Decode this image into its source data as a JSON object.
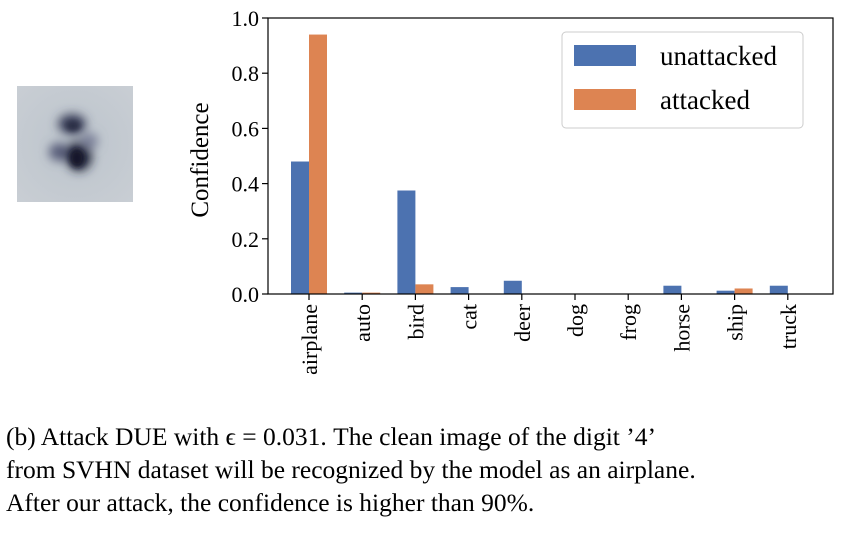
{
  "chart_data": {
    "type": "bar",
    "categories": [
      "airplane",
      "auto",
      "bird",
      "cat",
      "deer",
      "dog",
      "frog",
      "horse",
      "ship",
      "truck"
    ],
    "series": [
      {
        "name": "unattacked",
        "color": "#4c72b0",
        "values": [
          0.48,
          0.005,
          0.375,
          0.025,
          0.048,
          0.0,
          0.0,
          0.03,
          0.012,
          0.03
        ]
      },
      {
        "name": "attacked",
        "color": "#dd8452",
        "values": [
          0.94,
          0.005,
          0.035,
          0.0,
          0.0,
          0.0,
          0.0,
          0.0,
          0.02,
          0.0
        ]
      }
    ],
    "ylabel": "Confidence",
    "xlabel": "",
    "ylim": [
      0,
      1.0
    ],
    "yticks": [
      "0.0",
      "0.2",
      "0.4",
      "0.6",
      "0.8",
      "1.0"
    ],
    "legend_position": "top-right",
    "grid": false
  },
  "caption": {
    "line1": "(b) Attack DUE with ϵ = 0.031.  The clean image of the digit ’4’",
    "line2": "from SVHN dataset will be recognized by the model as an airplane.",
    "line3": "After our attack, the confidence is higher than 90%."
  }
}
